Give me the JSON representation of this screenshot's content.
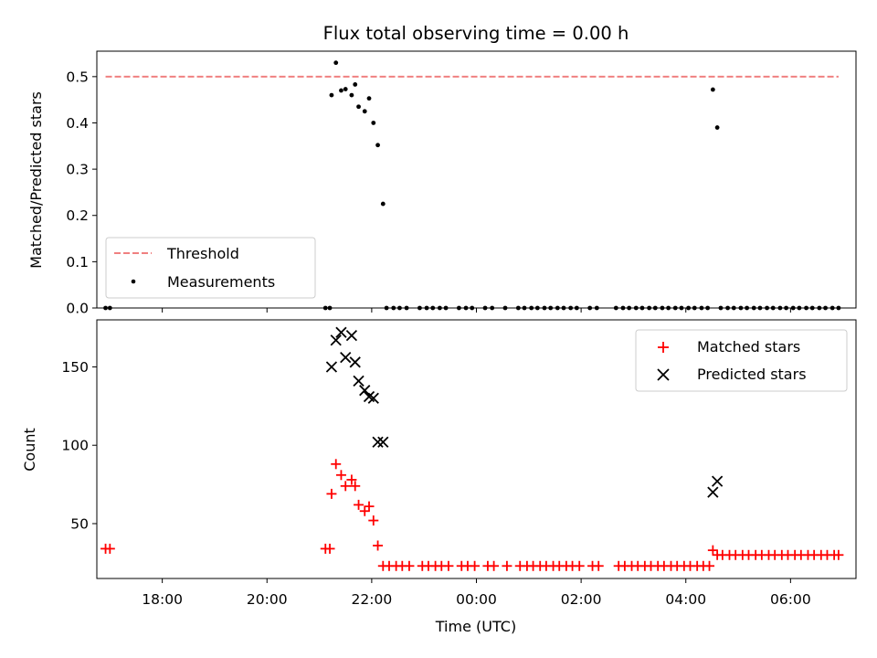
{
  "figure": {
    "title": "Flux total observing time = 0.00 h",
    "xlabel": "Time (UTC)"
  },
  "chart_data": [
    {
      "type": "scatter",
      "ylabel": "Matched/Predicted stars",
      "xlim": [
        "16:45",
        "07:15"
      ],
      "ylim": [
        0,
        0.555
      ],
      "yticks": [
        "0.0",
        "0.1",
        "0.2",
        "0.3",
        "0.4",
        "0.5"
      ],
      "grid": false,
      "legend_position": "lower-left",
      "threshold": {
        "name": "Threshold",
        "value": 0.5,
        "x_start": "16:55",
        "x_end": "06:55",
        "color": "#f08080"
      },
      "series": [
        {
          "name": "Measurements",
          "color": "#000000",
          "marker": "dot",
          "points": [
            [
              "16:55",
              0
            ],
            [
              "17:00",
              0
            ],
            [
              "21:07",
              0
            ],
            [
              "21:12",
              0
            ],
            [
              "21:14",
              0.46
            ],
            [
              "21:19",
              0.53
            ],
            [
              "21:25",
              0.47
            ],
            [
              "21:30",
              0.473
            ],
            [
              "21:37",
              0.46
            ],
            [
              "21:41",
              0.483
            ],
            [
              "21:45",
              0.435
            ],
            [
              "21:52",
              0.425
            ],
            [
              "21:57",
              0.453
            ],
            [
              "22:02",
              0.4
            ],
            [
              "22:07",
              0.352
            ],
            [
              "22:13",
              0.225
            ],
            [
              "22:17",
              0
            ],
            [
              "22:25",
              0
            ],
            [
              "22:32",
              0
            ],
            [
              "22:40",
              0
            ],
            [
              "22:55",
              0
            ],
            [
              "23:03",
              0
            ],
            [
              "23:10",
              0
            ],
            [
              "23:18",
              0
            ],
            [
              "23:25",
              0
            ],
            [
              "23:40",
              0
            ],
            [
              "23:48",
              0
            ],
            [
              "23:55",
              0
            ],
            [
              "00:10",
              0
            ],
            [
              "00:18",
              0
            ],
            [
              "00:33",
              0
            ],
            [
              "00:48",
              0
            ],
            [
              "00:55",
              0
            ],
            [
              "01:03",
              0
            ],
            [
              "01:10",
              0
            ],
            [
              "01:18",
              0
            ],
            [
              "01:25",
              0
            ],
            [
              "01:33",
              0
            ],
            [
              "01:40",
              0
            ],
            [
              "01:48",
              0
            ],
            [
              "01:55",
              0
            ],
            [
              "02:10",
              0
            ],
            [
              "02:18",
              0
            ],
            [
              "02:40",
              0
            ],
            [
              "02:48",
              0
            ],
            [
              "02:55",
              0
            ],
            [
              "03:03",
              0
            ],
            [
              "03:10",
              0
            ],
            [
              "03:18",
              0
            ],
            [
              "03:25",
              0
            ],
            [
              "03:33",
              0
            ],
            [
              "03:40",
              0
            ],
            [
              "03:48",
              0
            ],
            [
              "03:55",
              0
            ],
            [
              "04:03",
              0
            ],
            [
              "04:10",
              0
            ],
            [
              "04:18",
              0
            ],
            [
              "04:25",
              0
            ],
            [
              "04:31",
              0.472
            ],
            [
              "04:36",
              0.39
            ],
            [
              "04:40",
              0
            ],
            [
              "04:48",
              0
            ],
            [
              "04:55",
              0
            ],
            [
              "05:03",
              0
            ],
            [
              "05:10",
              0
            ],
            [
              "05:18",
              0
            ],
            [
              "05:25",
              0
            ],
            [
              "05:33",
              0
            ],
            [
              "05:40",
              0
            ],
            [
              "05:48",
              0
            ],
            [
              "05:55",
              0
            ],
            [
              "06:03",
              0
            ],
            [
              "06:10",
              0
            ],
            [
              "06:18",
              0
            ],
            [
              "06:25",
              0
            ],
            [
              "06:33",
              0
            ],
            [
              "06:40",
              0
            ],
            [
              "06:48",
              0
            ],
            [
              "06:55",
              0
            ]
          ]
        }
      ]
    },
    {
      "type": "scatter",
      "ylabel": "Count",
      "xlim": [
        "16:45",
        "07:15"
      ],
      "ylim": [
        15,
        180
      ],
      "yticks": [
        "50",
        "100",
        "150"
      ],
      "xticks": [
        "18:00",
        "20:00",
        "22:00",
        "00:00",
        "02:00",
        "04:00",
        "06:00"
      ],
      "grid": false,
      "legend_position": "upper-right",
      "series": [
        {
          "name": "Matched stars",
          "color": "#ff0000",
          "marker": "plus",
          "points": [
            [
              "16:55",
              34
            ],
            [
              "17:00",
              34
            ],
            [
              "21:07",
              34
            ],
            [
              "21:12",
              34
            ],
            [
              "21:14",
              69
            ],
            [
              "21:19",
              88
            ],
            [
              "21:25",
              81
            ],
            [
              "21:30",
              74
            ],
            [
              "21:37",
              78
            ],
            [
              "21:41",
              74
            ],
            [
              "21:45",
              62
            ],
            [
              "21:52",
              58
            ],
            [
              "21:57",
              61
            ],
            [
              "22:02",
              52
            ],
            [
              "22:07",
              36
            ],
            [
              "22:13",
              23
            ],
            [
              "22:20",
              23
            ],
            [
              "22:28",
              23
            ],
            [
              "22:35",
              23
            ],
            [
              "22:43",
              23
            ],
            [
              "22:58",
              23
            ],
            [
              "23:05",
              23
            ],
            [
              "23:13",
              23
            ],
            [
              "23:20",
              23
            ],
            [
              "23:28",
              23
            ],
            [
              "23:43",
              23
            ],
            [
              "23:50",
              23
            ],
            [
              "23:58",
              23
            ],
            [
              "00:13",
              23
            ],
            [
              "00:20",
              23
            ],
            [
              "00:35",
              23
            ],
            [
              "00:50",
              23
            ],
            [
              "00:58",
              23
            ],
            [
              "01:05",
              23
            ],
            [
              "01:13",
              23
            ],
            [
              "01:20",
              23
            ],
            [
              "01:28",
              23
            ],
            [
              "01:35",
              23
            ],
            [
              "01:43",
              23
            ],
            [
              "01:50",
              23
            ],
            [
              "01:58",
              23
            ],
            [
              "02:13",
              23
            ],
            [
              "02:20",
              23
            ],
            [
              "02:43",
              23
            ],
            [
              "02:50",
              23
            ],
            [
              "02:58",
              23
            ],
            [
              "03:05",
              23
            ],
            [
              "03:13",
              23
            ],
            [
              "03:20",
              23
            ],
            [
              "03:28",
              23
            ],
            [
              "03:35",
              23
            ],
            [
              "03:43",
              23
            ],
            [
              "03:50",
              23
            ],
            [
              "03:58",
              23
            ],
            [
              "04:05",
              23
            ],
            [
              "04:13",
              23
            ],
            [
              "04:20",
              23
            ],
            [
              "04:27",
              23
            ],
            [
              "04:31",
              33
            ],
            [
              "04:36",
              30
            ],
            [
              "04:42",
              30
            ],
            [
              "04:50",
              30
            ],
            [
              "04:57",
              30
            ],
            [
              "05:05",
              30
            ],
            [
              "05:12",
              30
            ],
            [
              "05:20",
              30
            ],
            [
              "05:27",
              30
            ],
            [
              "05:35",
              30
            ],
            [
              "05:42",
              30
            ],
            [
              "05:50",
              30
            ],
            [
              "05:57",
              30
            ],
            [
              "06:05",
              30
            ],
            [
              "06:12",
              30
            ],
            [
              "06:20",
              30
            ],
            [
              "06:27",
              30
            ],
            [
              "06:35",
              30
            ],
            [
              "06:42",
              30
            ],
            [
              "06:50",
              30
            ],
            [
              "06:55",
              30
            ]
          ]
        },
        {
          "name": "Predicted stars",
          "color": "#000000",
          "marker": "x",
          "points": [
            [
              "21:14",
              150
            ],
            [
              "21:19",
              167
            ],
            [
              "21:25",
              172
            ],
            [
              "21:30",
              156
            ],
            [
              "21:37",
              170
            ],
            [
              "21:41",
              153
            ],
            [
              "21:45",
              141
            ],
            [
              "21:52",
              135
            ],
            [
              "21:57",
              131
            ],
            [
              "22:02",
              130
            ],
            [
              "22:07",
              102
            ],
            [
              "22:13",
              102
            ],
            [
              "04:31",
              70
            ],
            [
              "04:36",
              77
            ]
          ]
        }
      ]
    }
  ]
}
